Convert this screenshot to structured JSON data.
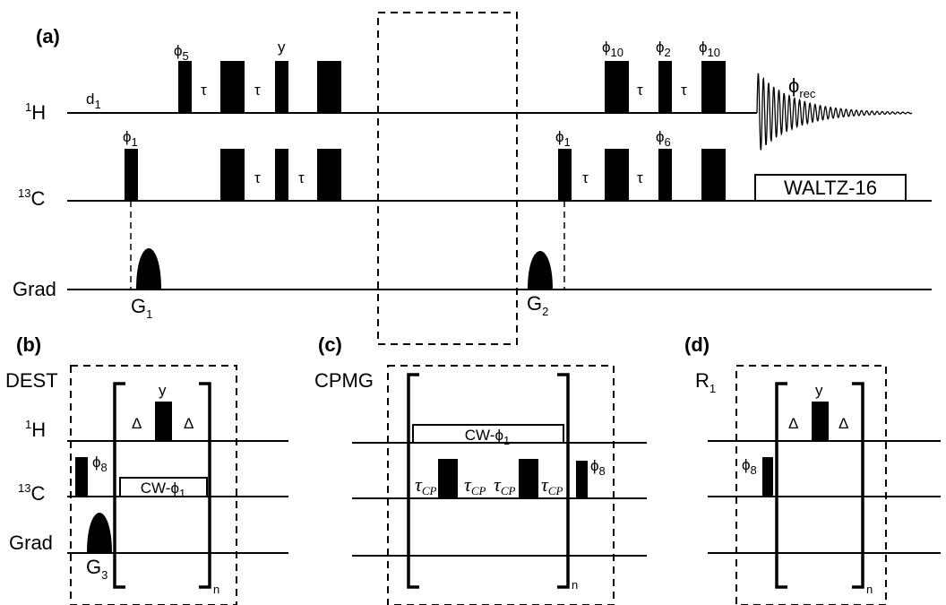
{
  "panels": {
    "a": {
      "label": "(a)",
      "channels": {
        "h": "H",
        "h_sup": "1",
        "c": "C",
        "c_sup": "13",
        "grad": "Grad"
      },
      "d1": {
        "main": "d",
        "sub": "1"
      },
      "tau": "τ",
      "phi": "ϕ",
      "phases": {
        "h_p1": "5",
        "h_p3": "y",
        "h_p4": "10",
        "h_p5": "2",
        "h_p6": "10",
        "c_p0": "1",
        "c_p4": "1",
        "c_p6": "6"
      },
      "rec": {
        "main": "ϕ",
        "sub": "rec"
      },
      "decoupling": "WALTZ-16",
      "gradients": {
        "g1_main": "G",
        "g1_sub": "1",
        "g2_main": "G",
        "g2_sub": "2"
      }
    },
    "b": {
      "label": "(b)",
      "name": "DEST",
      "channels": {
        "h": "H",
        "h_sup": "1",
        "c": "C",
        "c_sup": "13",
        "grad": "Grad"
      },
      "delta": "Δ",
      "pulse_y": "y",
      "phi8": {
        "main": "ϕ",
        "sub": "8"
      },
      "cw": {
        "main": "CW-ϕ",
        "sub": "1"
      },
      "gradient": {
        "main": "G",
        "sub": "3"
      },
      "repeat": "n"
    },
    "c": {
      "label": "(c)",
      "name": "CPMG",
      "cw": {
        "main": "CW-ϕ",
        "sub": "1"
      },
      "tau_cp": {
        "main": "τ",
        "sub": "CP"
      },
      "phi8": {
        "main": "ϕ",
        "sub": "8"
      },
      "repeat": "n"
    },
    "d": {
      "label": "(d)",
      "name": {
        "main": "R",
        "sub": "1"
      },
      "delta": "Δ",
      "pulse_y": "y",
      "phi8": {
        "main": "ϕ",
        "sub": "8"
      },
      "repeat": "n"
    }
  }
}
